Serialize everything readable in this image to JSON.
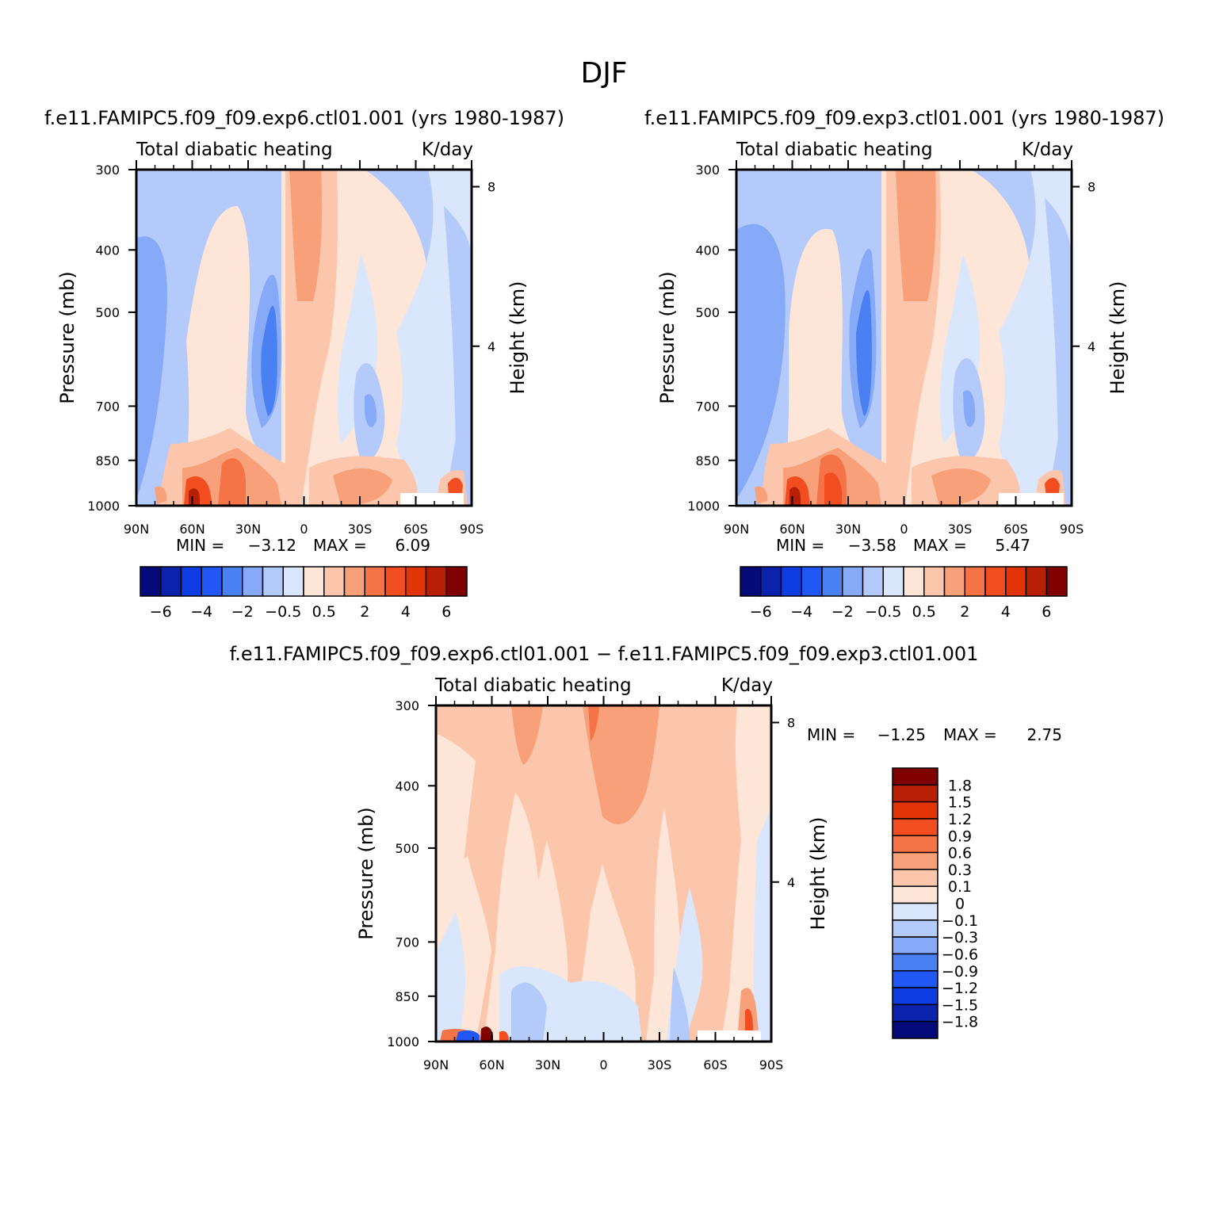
{
  "page_title": "DJF",
  "chart_data": [
    {
      "id": "p1",
      "type": "heatmap",
      "run_label": "f.e11.FAMIPC5.f09_f09.exp6.ctl01.001  (yrs 1980-1987)",
      "variable": "Total diabatic heating",
      "units": "K/day",
      "ylabel": "Pressure  (mb)",
      "ylabel_right": "Height  (km)",
      "x_ticks": [
        "90N",
        "60N",
        "30N",
        "0",
        "30S",
        "60S",
        "90S"
      ],
      "y_ticks": [
        "300",
        "400",
        "500",
        "700",
        "850",
        "1000"
      ],
      "y_ticks_right": [
        "8",
        "4"
      ],
      "stats": {
        "min_label": "MIN =",
        "min": "-3.12",
        "max_label": "MAX =",
        "max": "6.09"
      },
      "colorbar": {
        "colors": [
          "#050a7a",
          "#0b22ad",
          "#0f3ce3",
          "#2157f5",
          "#4a80f2",
          "#86aaf7",
          "#b4cafa",
          "#d9e6fb",
          "#fde6d8",
          "#fcc6ad",
          "#f7a07a",
          "#f47447",
          "#f24d21",
          "#e13508",
          "#b82005",
          "#800000"
        ],
        "labels": [
          "-6",
          "-4",
          "-2",
          "-0.5",
          "0.5",
          "2",
          "4",
          "6"
        ]
      }
    },
    {
      "id": "p2",
      "type": "heatmap",
      "run_label": "f.e11.FAMIPC5.f09_f09.exp3.ctl01.001  (yrs 1980-1987)",
      "variable": "Total diabatic heating",
      "units": "K/day",
      "ylabel": "Pressure  (mb)",
      "ylabel_right": "Height  (km)",
      "x_ticks": [
        "90N",
        "60N",
        "30N",
        "0",
        "30S",
        "60S",
        "90S"
      ],
      "y_ticks": [
        "300",
        "400",
        "500",
        "700",
        "850",
        "1000"
      ],
      "y_ticks_right": [
        "8",
        "4"
      ],
      "stats": {
        "min_label": "MIN =",
        "min": "-3.58",
        "max_label": "MAX =",
        "max": "5.47"
      },
      "colorbar": {
        "colors": [
          "#050a7a",
          "#0b22ad",
          "#0f3ce3",
          "#2157f5",
          "#4a80f2",
          "#86aaf7",
          "#b4cafa",
          "#d9e6fb",
          "#fde6d8",
          "#fcc6ad",
          "#f7a07a",
          "#f47447",
          "#f24d21",
          "#e13508",
          "#b82005",
          "#800000"
        ],
        "labels": [
          "-6",
          "-4",
          "-2",
          "-0.5",
          "0.5",
          "2",
          "4",
          "6"
        ]
      }
    },
    {
      "id": "p3",
      "type": "heatmap",
      "run_label": "f.e11.FAMIPC5.f09_f09.exp6.ctl01.001 - f.e11.FAMIPC5.f09_f09.exp3.ctl01.001",
      "variable": "Total diabatic heating",
      "units": "K/day",
      "ylabel": "Pressure  (mb)",
      "ylabel_right": "Height  (km)",
      "x_ticks": [
        "90N",
        "60N",
        "30N",
        "0",
        "30S",
        "60S",
        "90S"
      ],
      "y_ticks": [
        "300",
        "400",
        "500",
        "700",
        "850",
        "1000"
      ],
      "y_ticks_right": [
        "8",
        "4"
      ],
      "stats": {
        "min_label": "MIN =",
        "min": "-1.25",
        "max_label": "MAX =",
        "max": "2.75"
      },
      "colorbar": {
        "colors": [
          "#800000",
          "#b82005",
          "#e13508",
          "#f24d21",
          "#f47447",
          "#f7a07a",
          "#fcc6ad",
          "#fde6d8",
          "#d9e6fb",
          "#b4cafa",
          "#86aaf7",
          "#4a80f2",
          "#2157f5",
          "#0f3ce3",
          "#0b22ad",
          "#050a7a"
        ],
        "labels": [
          "1.8",
          "1.5",
          "1.2",
          "0.9",
          "0.6",
          "0.3",
          "0.1",
          "0",
          "-0.1",
          "-0.3",
          "-0.6",
          "-0.9",
          "-1.2",
          "-1.5",
          "-1.8"
        ]
      }
    }
  ]
}
